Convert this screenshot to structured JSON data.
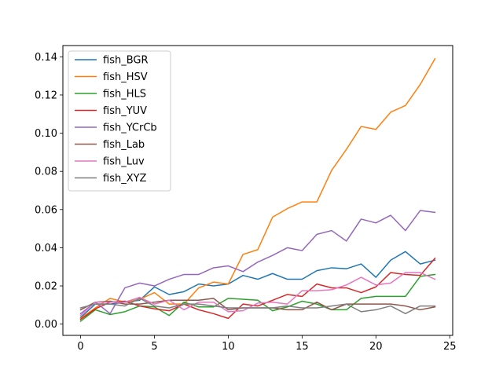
{
  "chart_data": {
    "type": "line",
    "title": "",
    "xlabel": "",
    "ylabel": "",
    "xlim": [
      -1.2,
      25.2
    ],
    "ylim": [
      -0.0059,
      0.1459
    ],
    "xticks": [
      0,
      5,
      10,
      15,
      20,
      25
    ],
    "xtick_labels": [
      "0",
      "5",
      "10",
      "15",
      "20",
      "25"
    ],
    "yticks": [
      0.0,
      0.02,
      0.04,
      0.06,
      0.08,
      0.1,
      0.12,
      0.14
    ],
    "ytick_labels": [
      "0.00",
      "0.02",
      "0.04",
      "0.06",
      "0.08",
      "0.10",
      "0.12",
      "0.14"
    ],
    "grid": false,
    "legend_position": "upper left",
    "x": [
      0,
      1,
      2,
      3,
      4,
      5,
      6,
      7,
      8,
      9,
      10,
      11,
      12,
      13,
      14,
      15,
      16,
      17,
      18,
      19,
      20,
      21,
      22,
      23,
      24
    ],
    "series": [
      {
        "name": "fish_BGR",
        "color": "#1f77b4",
        "values": [
          0.0035,
          0.0105,
          0.0105,
          0.0115,
          0.0125,
          0.0195,
          0.0155,
          0.017,
          0.021,
          0.02,
          0.021,
          0.0255,
          0.0235,
          0.0265,
          0.0235,
          0.0235,
          0.028,
          0.0295,
          0.029,
          0.0315,
          0.0245,
          0.0335,
          0.038,
          0.0315,
          0.0335
        ]
      },
      {
        "name": "fish_HSV",
        "color": "#ff7f0e",
        "values": [
          0.003,
          0.0085,
          0.0135,
          0.0115,
          0.013,
          0.0165,
          0.0105,
          0.0105,
          0.019,
          0.022,
          0.021,
          0.0365,
          0.039,
          0.056,
          0.0605,
          0.064,
          0.064,
          0.0805,
          0.0915,
          0.1035,
          0.102,
          0.111,
          0.1145,
          0.1255,
          0.139
        ]
      },
      {
        "name": "fish_HLS",
        "color": "#2ca02c",
        "values": [
          0.0015,
          0.0075,
          0.005,
          0.0065,
          0.0095,
          0.009,
          0.0045,
          0.0115,
          0.009,
          0.009,
          0.0135,
          0.013,
          0.0125,
          0.007,
          0.009,
          0.012,
          0.0105,
          0.0075,
          0.0075,
          0.0135,
          0.0145,
          0.0145,
          0.0145,
          0.025,
          0.026
        ]
      },
      {
        "name": "fish_YUV",
        "color": "#d62728",
        "values": [
          0.0025,
          0.008,
          0.0115,
          0.012,
          0.0095,
          0.008,
          0.007,
          0.0105,
          0.0075,
          0.0055,
          0.003,
          0.0105,
          0.0095,
          0.0125,
          0.0155,
          0.0145,
          0.021,
          0.019,
          0.019,
          0.0165,
          0.0195,
          0.027,
          0.026,
          0.0255,
          0.0345
        ]
      },
      {
        "name": "fish_YCrCb",
        "color": "#9467bd",
        "values": [
          0.0055,
          0.0115,
          0.0055,
          0.019,
          0.0215,
          0.02,
          0.0235,
          0.026,
          0.026,
          0.0295,
          0.0305,
          0.0275,
          0.0325,
          0.036,
          0.04,
          0.0385,
          0.047,
          0.049,
          0.0435,
          0.055,
          0.053,
          0.057,
          0.049,
          0.0595,
          0.0585
        ]
      },
      {
        "name": "fish_Lab",
        "color": "#8c564b",
        "values": [
          0.0075,
          0.0115,
          0.012,
          0.0105,
          0.0105,
          0.0115,
          0.0125,
          0.0125,
          0.0125,
          0.0135,
          0.0075,
          0.0085,
          0.0085,
          0.0085,
          0.0075,
          0.0075,
          0.0115,
          0.0075,
          0.0105,
          0.0105,
          0.0105,
          0.0105,
          0.0095,
          0.0075,
          0.009
        ]
      },
      {
        "name": "fish_Luv",
        "color": "#e377c2",
        "values": [
          0.0045,
          0.0115,
          0.0115,
          0.0115,
          0.014,
          0.0105,
          0.0125,
          0.0075,
          0.0115,
          0.0115,
          0.0065,
          0.007,
          0.011,
          0.0115,
          0.0105,
          0.0175,
          0.0175,
          0.018,
          0.0205,
          0.0245,
          0.0205,
          0.0215,
          0.027,
          0.027,
          0.0235
        ]
      },
      {
        "name": "fish_XYZ",
        "color": "#7f7f7f",
        "values": [
          0.0085,
          0.0105,
          0.0105,
          0.0095,
          0.0135,
          0.0095,
          0.0085,
          0.0105,
          0.0105,
          0.0095,
          0.0085,
          0.0085,
          0.0085,
          0.0085,
          0.0095,
          0.0085,
          0.0085,
          0.0095,
          0.0105,
          0.0065,
          0.0075,
          0.0095,
          0.0055,
          0.0095,
          0.0095
        ]
      }
    ]
  }
}
